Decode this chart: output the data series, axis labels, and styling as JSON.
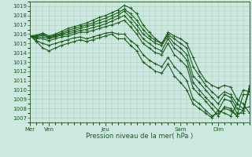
{
  "title": "Pression niveau de la mer( hPa )",
  "ylim": [
    1006.5,
    1019.5
  ],
  "yticks": [
    1007,
    1008,
    1009,
    1010,
    1011,
    1012,
    1013,
    1014,
    1015,
    1016,
    1017,
    1018,
    1019
  ],
  "background_color": "#cce8e0",
  "grid_color": "#aaccbb",
  "line_color": "#1a5c1a",
  "lines": [
    {
      "y": [
        1015.8,
        1015.9,
        1016.1,
        1015.8,
        1016.0,
        1016.3,
        1016.6,
        1016.8,
        1017.0,
        1017.2,
        1017.5,
        1017.8,
        1018.0,
        1018.3,
        1018.6,
        1019.1,
        1018.8,
        1018.2,
        1017.0,
        1016.2,
        1015.5,
        1015.0,
        1016.2,
        1015.8,
        1015.5,
        1015.0,
        1013.5,
        1012.0,
        1011.0,
        1010.5,
        1010.2,
        1010.5,
        1010.3,
        1009.0,
        1008.5,
        1007.5
      ]
    },
    {
      "y": [
        1015.8,
        1015.8,
        1016.0,
        1015.7,
        1015.9,
        1016.1,
        1016.4,
        1016.6,
        1016.8,
        1017.0,
        1017.2,
        1017.5,
        1017.7,
        1018.0,
        1018.3,
        1018.7,
        1018.2,
        1017.5,
        1016.5,
        1015.8,
        1015.3,
        1015.0,
        1016.0,
        1015.5,
        1015.0,
        1014.5,
        1012.5,
        1011.5,
        1010.5,
        1009.8,
        1009.2,
        1009.8,
        1009.5,
        1008.5,
        1008.0,
        1008.2
      ]
    },
    {
      "y": [
        1015.8,
        1015.7,
        1015.9,
        1015.6,
        1015.8,
        1016.0,
        1016.2,
        1016.4,
        1016.6,
        1016.8,
        1017.0,
        1017.2,
        1017.4,
        1017.7,
        1018.0,
        1018.5,
        1017.8,
        1017.0,
        1016.0,
        1015.5,
        1015.0,
        1014.8,
        1015.8,
        1015.0,
        1014.5,
        1013.8,
        1011.5,
        1010.8,
        1010.0,
        1009.2,
        1008.5,
        1009.5,
        1009.2,
        1008.0,
        1007.8,
        1010.2
      ]
    },
    {
      "y": [
        1015.8,
        1015.6,
        1015.7,
        1015.5,
        1015.7,
        1015.9,
        1016.0,
        1016.2,
        1016.4,
        1016.5,
        1016.7,
        1016.9,
        1017.1,
        1017.4,
        1017.7,
        1018.0,
        1017.3,
        1016.5,
        1015.5,
        1015.0,
        1014.5,
        1014.2,
        1015.5,
        1014.5,
        1014.0,
        1013.2,
        1010.8,
        1010.0,
        1009.2,
        1008.5,
        1007.8,
        1009.0,
        1008.8,
        1007.5,
        1007.5,
        1010.5
      ]
    },
    {
      "y": [
        1015.8,
        1015.5,
        1015.5,
        1015.3,
        1015.5,
        1015.7,
        1015.8,
        1016.0,
        1016.2,
        1016.2,
        1016.4,
        1016.6,
        1016.8,
        1017.0,
        1017.2,
        1017.5,
        1016.8,
        1016.0,
        1015.0,
        1014.5,
        1014.0,
        1013.8,
        1015.0,
        1013.8,
        1013.2,
        1012.5,
        1010.2,
        1009.5,
        1008.8,
        1008.0,
        1007.2,
        1008.2,
        1008.0,
        1007.2,
        1007.8,
        1010.0
      ]
    },
    {
      "y": [
        1015.8,
        1015.3,
        1015.0,
        1014.8,
        1015.0,
        1015.2,
        1015.4,
        1015.6,
        1015.7,
        1015.5,
        1015.7,
        1015.9,
        1016.1,
        1016.2,
        1016.0,
        1016.0,
        1015.3,
        1014.8,
        1013.8,
        1013.2,
        1012.8,
        1012.5,
        1013.5,
        1012.5,
        1011.8,
        1011.0,
        1009.0,
        1008.5,
        1007.8,
        1007.2,
        1007.5,
        1008.0,
        1007.8,
        1007.2,
        1009.5,
        1009.5
      ]
    },
    {
      "y": [
        1015.8,
        1015.2,
        1014.5,
        1014.2,
        1014.5,
        1014.8,
        1015.0,
        1015.2,
        1015.4,
        1015.2,
        1015.4,
        1015.6,
        1015.8,
        1016.0,
        1015.5,
        1015.5,
        1014.8,
        1014.2,
        1013.0,
        1012.5,
        1012.0,
        1011.8,
        1012.8,
        1011.5,
        1010.8,
        1010.0,
        1008.5,
        1008.0,
        1007.5,
        1007.0,
        1007.8,
        1007.5,
        1007.2,
        1008.5,
        1010.0,
        1009.8
      ]
    }
  ],
  "xtick_labels": [
    "Mer",
    "Ven",
    "Jeu",
    "Sam",
    "Dim"
  ],
  "xtick_positions": [
    0,
    3,
    12,
    24,
    30
  ],
  "n_points": 36,
  "line_width": 0.8,
  "figsize": [
    3.2,
    2.0
  ],
  "dpi": 100
}
